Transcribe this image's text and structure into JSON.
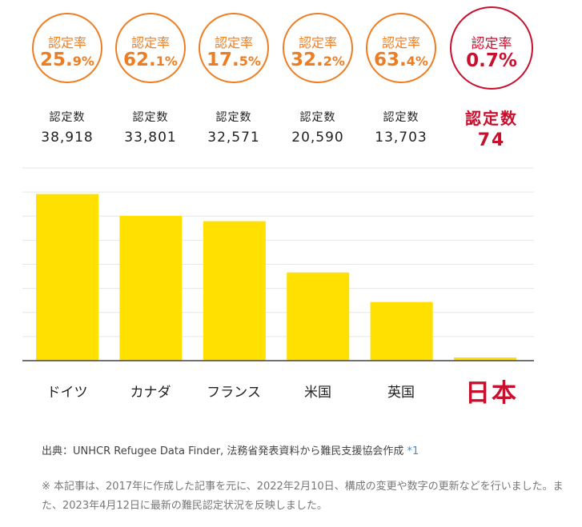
{
  "rate_label": "認定率",
  "count_label": "認定数",
  "chart_data": {
    "type": "bar",
    "categories": [
      "ドイツ",
      "カナダ",
      "フランス",
      "米国",
      "英国",
      "日本"
    ],
    "series": [
      {
        "values": [
          38918,
          33801,
          32571,
          20590,
          13703,
          74
        ]
      }
    ],
    "rates": [
      {
        "num": "25.",
        "dec": "9%"
      },
      {
        "num": "62.",
        "dec": "1%"
      },
      {
        "num": "17.",
        "dec": "5%"
      },
      {
        "num": "32.",
        "dec": "2%"
      },
      {
        "num": "63.",
        "dec": "4%"
      },
      {
        "num": "0.",
        "dec": "7%"
      }
    ],
    "count_labels": [
      "38,918",
      "33,801",
      "32,571",
      "20,590",
      "13,703",
      "74"
    ],
    "ylim": [
      0,
      45000
    ],
    "grid": true,
    "bar_color": "#ffe000",
    "highlight_color": "#c8102e",
    "accent_color": "#ee7d22"
  },
  "source": {
    "text": "出典：UNHCR Refugee Data Finder, 法務省発表資料から難民支援協会作成",
    "ref": "*1"
  },
  "note": "※ 本記事は、2017年に作成した記事を元に、2022年2月10日、構成の変更や数字の更新などを行いました。また、2023年4月12日に最新の難民認定状況を反映しました。"
}
